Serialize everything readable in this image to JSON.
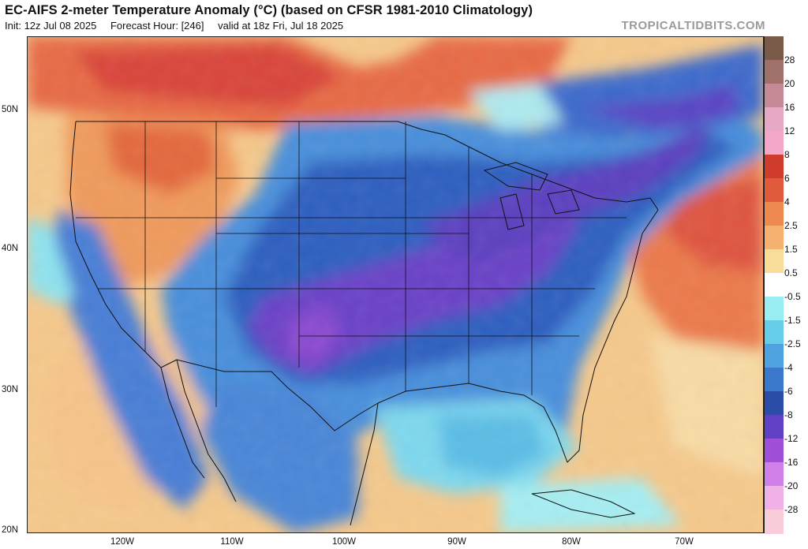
{
  "header": {
    "title": "EC-AIFS 2-meter Temperature Anomaly (°C) (based on CFSR 1981-2010 Climatology)",
    "init": "Init: 12z Jul 08 2025",
    "forecast_hour": "Forecast Hour: [246]",
    "valid": "valid at 18z Fri, Jul 18 2025",
    "brand": "TROPICALTIDBITS.COM"
  },
  "axes": {
    "lat_labels": [
      "50N",
      "40N",
      "30N",
      "20N"
    ],
    "lon_labels": [
      "120W",
      "110W",
      "100W",
      "90W",
      "80W",
      "70W"
    ]
  },
  "colorbar": {
    "labels": [
      "28",
      "20",
      "16",
      "12",
      "8",
      "6",
      "4",
      "2.5",
      "1.5",
      "0.5",
      "-0.5",
      "-1.5",
      "-2.5",
      "-4",
      "-6",
      "-8",
      "-12",
      "-16",
      "-20",
      "-28"
    ],
    "colors": [
      "#7a5a48",
      "#a0706a",
      "#c68a96",
      "#e7a8c6",
      "#f4a7c8",
      "#cf3c2c",
      "#e05a3c",
      "#ee8a50",
      "#f6b070",
      "#f8dc9a",
      "#ffffff",
      "#9aeef2",
      "#68cde8",
      "#4fa2e0",
      "#3a78cc",
      "#2a4ea8",
      "#6040c4",
      "#a050d8",
      "#d080e8",
      "#f0b0e8",
      "#f8ccd8"
    ]
  }
}
